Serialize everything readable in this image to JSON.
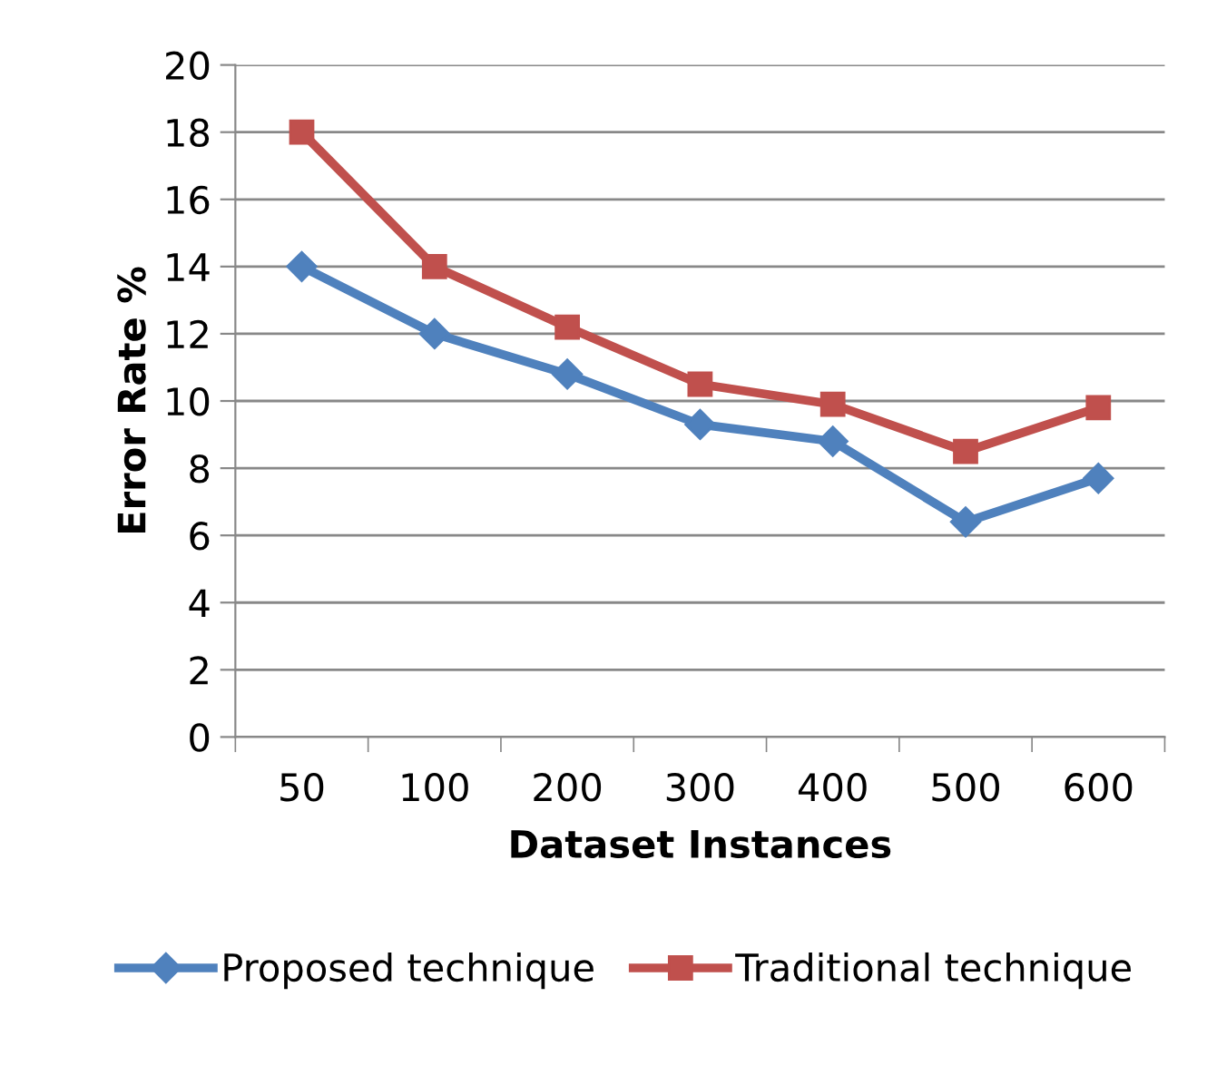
{
  "chart_data": {
    "type": "line",
    "xlabel": "Dataset Instances",
    "ylabel": "Error Rate %",
    "categories": [
      "50",
      "100",
      "200",
      "300",
      "400",
      "500",
      "600"
    ],
    "series": [
      {
        "name": "Proposed technique",
        "color": "#4f81bd",
        "marker": "diamond",
        "values": [
          14.0,
          12.0,
          10.8,
          9.3,
          8.8,
          6.4,
          7.7
        ]
      },
      {
        "name": "Traditional technique",
        "color": "#c0504d",
        "marker": "square",
        "values": [
          18.0,
          14.0,
          12.2,
          10.5,
          9.9,
          8.5,
          9.8
        ]
      }
    ],
    "ylim": [
      0,
      20
    ],
    "yticks": [
      0,
      2,
      4,
      6,
      8,
      10,
      12,
      14,
      16,
      18,
      20
    ],
    "grid": "y",
    "legend": "bottom",
    "line_style": "solid"
  }
}
